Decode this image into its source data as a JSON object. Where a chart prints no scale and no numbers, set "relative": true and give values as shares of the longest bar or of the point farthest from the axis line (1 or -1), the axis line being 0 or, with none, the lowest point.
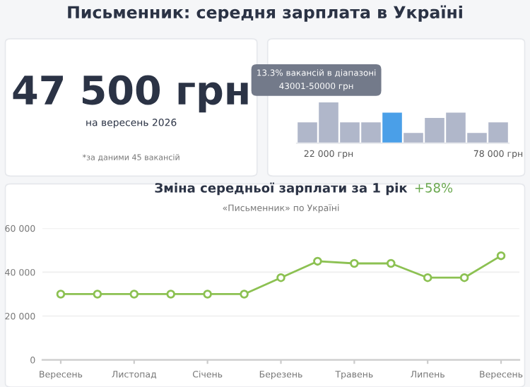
{
  "chart_data": [
    {
      "type": "other",
      "title": "Письменник: середня зарплата в Україні",
      "annotations": [
        "47 500 грн",
        "на вересень 2026",
        "*за даними 45 вакансій"
      ]
    },
    {
      "type": "bar",
      "relative": true,
      "categories": [
        null,
        "22 000 грн",
        null,
        null,
        null,
        null,
        null,
        null,
        null,
        "78 000 грн"
      ],
      "values": [
        0.51,
        1,
        0.51,
        0.51,
        0.75,
        0.25,
        0.62,
        0.75,
        0.25,
        0.51
      ],
      "colors": [
        "#b0b7ca",
        "#b0b7ca",
        "#b0b7ca",
        "#b0b7ca",
        "#4a9fe8",
        "#b0b7ca",
        "#b0b7ca",
        "#b0b7ca",
        "#b0b7ca",
        "#b0b7ca"
      ],
      "annotations": [
        "13.3% вакансій в діапазоні\n43001-50000 грн"
      ]
    },
    {
      "type": "line",
      "title": "Зміна середньої зарплати за 1 рік",
      "subtitle": "«Письменник» по Україні",
      "annotations": [
        "+58%"
      ],
      "categories": [
        "Вересень",
        null,
        "Листопад",
        null,
        "Січень",
        null,
        "Березень",
        null,
        "Травень",
        null,
        "Липень",
        null,
        "Вересень"
      ],
      "series": [
        {
          "color": "#8cc152",
          "values": [
            30000,
            30000,
            30000,
            30000,
            30000,
            30000,
            37500,
            45000,
            44000,
            44000,
            37500,
            37500,
            47500
          ]
        }
      ],
      "ylim": [
        0,
        60000
      ],
      "yticks": [
        0,
        {
          "value": 20000,
          "label": "20 000"
        },
        {
          "value": 40000,
          "label": "40 000"
        },
        {
          "value": 60000,
          "label": "60 000"
        }
      ],
      "grid": "y",
      "marker": "circle"
    }
  ]
}
